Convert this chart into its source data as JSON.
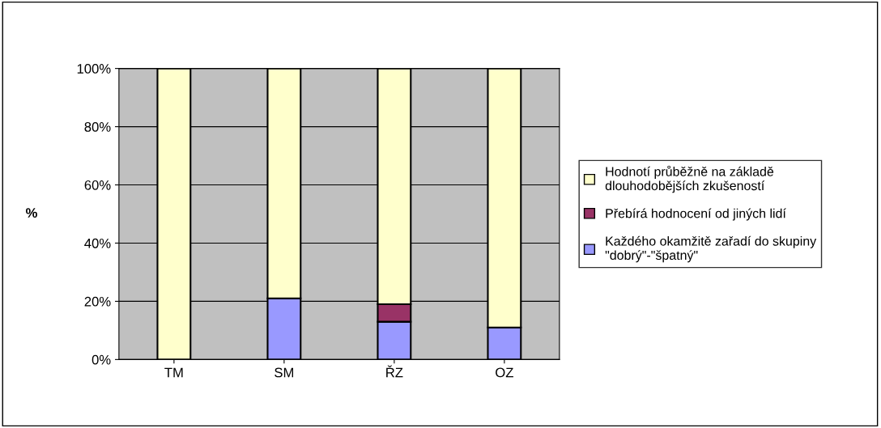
{
  "chart_data": {
    "type": "bar",
    "stacked": true,
    "ylabel": "%",
    "categories": [
      "TM",
      "SM",
      "ŘZ",
      "OZ"
    ],
    "series": [
      {
        "name": "Každého okamžitě zařadí do skupiny \"dobrý\"-\"špatný\"",
        "color": "#9999ff",
        "values": [
          0,
          21,
          13,
          11
        ]
      },
      {
        "name": "Přebírá hodnocení od jiných lidí",
        "color": "#993366",
        "values": [
          0,
          0,
          6,
          0
        ]
      },
      {
        "name": "Hodnotí průběžně na základě dlouhodobějších zkušeností",
        "color": "#ffffcc",
        "values": [
          100,
          79,
          81,
          89
        ]
      }
    ],
    "ylim": [
      0,
      100
    ],
    "yticks": [
      {
        "value": 0,
        "label": "0%"
      },
      {
        "value": 20,
        "label": "20%"
      },
      {
        "value": 40,
        "label": "40%"
      },
      {
        "value": 60,
        "label": "60%"
      },
      {
        "value": 80,
        "label": "80%"
      },
      {
        "value": 100,
        "label": "100%"
      }
    ],
    "grid": "y",
    "legend": "right"
  }
}
